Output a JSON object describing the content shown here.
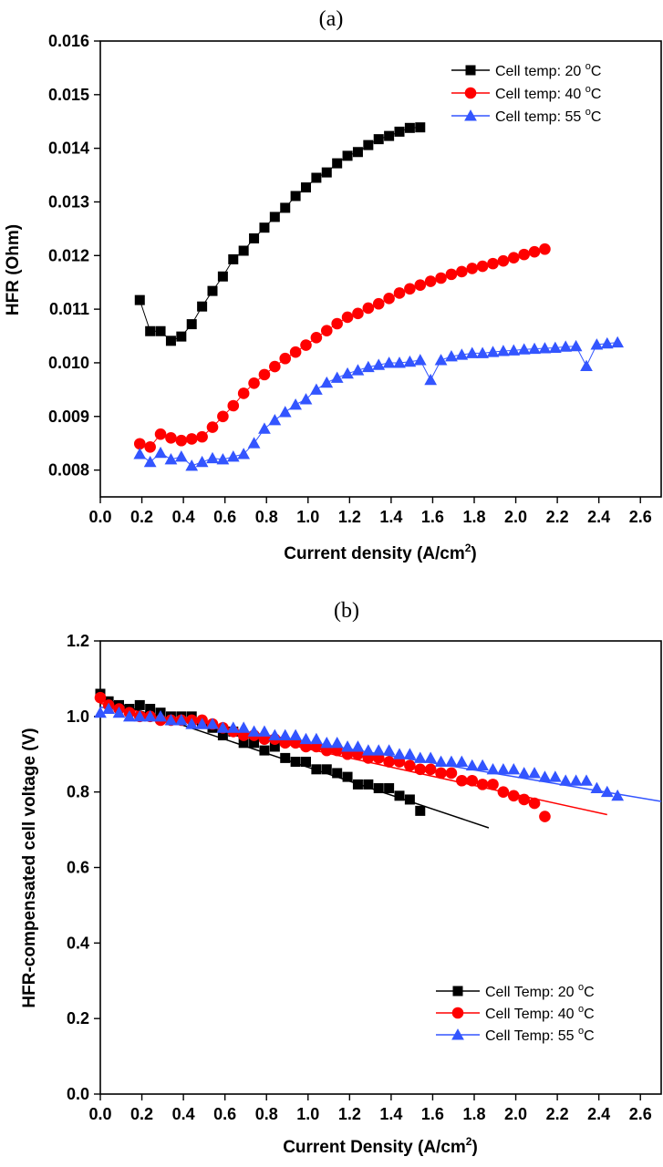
{
  "chart_data": [
    {
      "panel_label": "(a)",
      "type": "line",
      "xlabel": "Current density (A/cm",
      "xlabel_sup": "2",
      "xlabel_end": ")",
      "ylabel": "HFR (Ohm)",
      "xlim": [
        0.0,
        2.7
      ],
      "ylim": [
        0.0075,
        0.016
      ],
      "xticks": [
        "0.0",
        "0.2",
        "0.4",
        "0.6",
        "0.8",
        "1.0",
        "1.2",
        "1.4",
        "1.6",
        "1.8",
        "2.0",
        "2.2",
        "2.4",
        "2.6"
      ],
      "yticks": [
        "0.008",
        "0.009",
        "0.010",
        "0.011",
        "0.012",
        "0.013",
        "0.014",
        "0.015",
        "0.016"
      ],
      "legend_position": "top-right",
      "series": [
        {
          "name": "Cell temp: 20 °C",
          "legend_prefix": "Cell temp: 20 ",
          "legend_suffix": "C",
          "color": "#000000",
          "marker": "square",
          "x": [
            0.19,
            0.24,
            0.29,
            0.34,
            0.39,
            0.44,
            0.49,
            0.54,
            0.59,
            0.64,
            0.69,
            0.74,
            0.79,
            0.84,
            0.89,
            0.94,
            0.99,
            1.04,
            1.09,
            1.14,
            1.19,
            1.24,
            1.29,
            1.34,
            1.39,
            1.44,
            1.49,
            1.54
          ],
          "y": [
            0.01117,
            0.01059,
            0.01059,
            0.01041,
            0.01049,
            0.01072,
            0.01105,
            0.01134,
            0.01161,
            0.01193,
            0.01209,
            0.01232,
            0.01252,
            0.01272,
            0.01289,
            0.01311,
            0.01327,
            0.01345,
            0.01355,
            0.01372,
            0.01386,
            0.01393,
            0.01406,
            0.01417,
            0.01423,
            0.01431,
            0.01438,
            0.01439
          ]
        },
        {
          "name": "Cell temp: 40 °C",
          "legend_prefix": "Cell temp: 40 ",
          "legend_suffix": "C",
          "color": "#ff0000",
          "marker": "circle",
          "x": [
            0.19,
            0.24,
            0.29,
            0.34,
            0.39,
            0.44,
            0.49,
            0.54,
            0.59,
            0.64,
            0.69,
            0.74,
            0.79,
            0.84,
            0.89,
            0.94,
            0.99,
            1.04,
            1.09,
            1.14,
            1.19,
            1.24,
            1.29,
            1.34,
            1.39,
            1.44,
            1.49,
            1.54,
            1.59,
            1.64,
            1.69,
            1.74,
            1.79,
            1.84,
            1.89,
            1.94,
            1.99,
            2.04,
            2.09,
            2.14
          ],
          "y": [
            0.00849,
            0.00843,
            0.00867,
            0.0086,
            0.00855,
            0.00858,
            0.00862,
            0.0088,
            0.009,
            0.0092,
            0.00943,
            0.00962,
            0.00978,
            0.00993,
            0.01008,
            0.0102,
            0.01033,
            0.01047,
            0.0106,
            0.01073,
            0.01085,
            0.01092,
            0.01102,
            0.0111,
            0.0112,
            0.0113,
            0.01138,
            0.01145,
            0.01152,
            0.01158,
            0.01165,
            0.0117,
            0.01176,
            0.0118,
            0.01185,
            0.0119,
            0.01196,
            0.01202,
            0.01207,
            0.01212
          ]
        },
        {
          "name": "Cell temp: 55 °C",
          "legend_prefix": "Cell temp: 55 ",
          "legend_suffix": "C",
          "color": "#3355ff",
          "marker": "triangle",
          "x": [
            0.19,
            0.24,
            0.29,
            0.34,
            0.39,
            0.44,
            0.49,
            0.54,
            0.59,
            0.64,
            0.69,
            0.74,
            0.79,
            0.84,
            0.89,
            0.94,
            0.99,
            1.04,
            1.09,
            1.14,
            1.19,
            1.24,
            1.29,
            1.34,
            1.39,
            1.44,
            1.49,
            1.54,
            1.59,
            1.64,
            1.69,
            1.74,
            1.79,
            1.84,
            1.89,
            1.94,
            1.99,
            2.04,
            2.09,
            2.14,
            2.19,
            2.24,
            2.29,
            2.34,
            2.39,
            2.44,
            2.49
          ],
          "y": [
            0.0083,
            0.00815,
            0.00832,
            0.0082,
            0.00825,
            0.00808,
            0.00815,
            0.00822,
            0.0082,
            0.00825,
            0.0083,
            0.0085,
            0.00877,
            0.00893,
            0.00908,
            0.00922,
            0.00932,
            0.0095,
            0.00963,
            0.00972,
            0.0098,
            0.00986,
            0.00992,
            0.00996,
            0.01,
            0.01,
            0.01002,
            0.01005,
            0.00968,
            0.01005,
            0.01012,
            0.01015,
            0.01018,
            0.01018,
            0.0102,
            0.01022,
            0.01023,
            0.01025,
            0.01026,
            0.01027,
            0.01028,
            0.0103,
            0.01031,
            0.00994,
            0.01034,
            0.01036,
            0.01038
          ]
        }
      ]
    },
    {
      "panel_label": "(b)",
      "type": "scatter",
      "xlabel": "Current Density (A/cm",
      "xlabel_sup": "2",
      "xlabel_end": ")",
      "ylabel": "HFR-compensated cell voltage (V)",
      "xlim": [
        0.0,
        2.7
      ],
      "ylim": [
        0.0,
        1.2
      ],
      "xticks": [
        "0.0",
        "0.2",
        "0.4",
        "0.6",
        "0.8",
        "1.0",
        "1.2",
        "1.4",
        "1.6",
        "1.8",
        "2.0",
        "2.2",
        "2.4",
        "2.6"
      ],
      "yticks": [
        "0.0",
        "0.2",
        "0.4",
        "0.6",
        "0.8",
        "1.0",
        "1.2"
      ],
      "legend_position": "bottom-right",
      "series": [
        {
          "name": "Cell Temp: 20 °C",
          "legend_prefix": "Cell Temp: 20 ",
          "legend_suffix": "C",
          "color": "#000000",
          "marker": "square",
          "x": [
            0.0,
            0.04,
            0.09,
            0.14,
            0.19,
            0.24,
            0.29,
            0.34,
            0.39,
            0.44,
            0.49,
            0.54,
            0.59,
            0.64,
            0.69,
            0.74,
            0.79,
            0.84,
            0.89,
            0.94,
            0.99,
            1.04,
            1.09,
            1.14,
            1.19,
            1.24,
            1.29,
            1.34,
            1.39,
            1.44,
            1.49,
            1.54
          ],
          "y": [
            1.06,
            1.04,
            1.03,
            1.02,
            1.03,
            1.02,
            1.01,
            1.0,
            1.0,
            1.0,
            0.98,
            0.97,
            0.95,
            0.96,
            0.93,
            0.93,
            0.91,
            0.92,
            0.89,
            0.88,
            0.88,
            0.86,
            0.86,
            0.85,
            0.84,
            0.82,
            0.82,
            0.81,
            0.81,
            0.79,
            0.78,
            0.75
          ],
          "fit": {
            "x": [
              0.0,
              1.87
            ],
            "y": [
              1.05,
              0.705
            ]
          }
        },
        {
          "name": "Cell Temp: 40 °C",
          "legend_prefix": "Cell Temp: 40 ",
          "legend_suffix": "C",
          "color": "#ff0000",
          "marker": "circle",
          "x": [
            0.0,
            0.04,
            0.09,
            0.14,
            0.19,
            0.24,
            0.29,
            0.34,
            0.39,
            0.44,
            0.49,
            0.54,
            0.59,
            0.64,
            0.69,
            0.74,
            0.79,
            0.84,
            0.89,
            0.94,
            0.99,
            1.04,
            1.09,
            1.14,
            1.19,
            1.24,
            1.29,
            1.34,
            1.39,
            1.44,
            1.49,
            1.54,
            1.59,
            1.64,
            1.69,
            1.74,
            1.79,
            1.84,
            1.89,
            1.94,
            1.99,
            2.04,
            2.09,
            2.14
          ],
          "y": [
            1.05,
            1.03,
            1.02,
            1.01,
            1.0,
            1.0,
            0.99,
            0.99,
            0.99,
            0.99,
            0.99,
            0.98,
            0.97,
            0.96,
            0.95,
            0.95,
            0.94,
            0.94,
            0.93,
            0.93,
            0.92,
            0.92,
            0.91,
            0.91,
            0.9,
            0.9,
            0.89,
            0.89,
            0.88,
            0.88,
            0.87,
            0.86,
            0.86,
            0.85,
            0.85,
            0.83,
            0.83,
            0.82,
            0.82,
            0.8,
            0.79,
            0.78,
            0.77,
            0.735
          ],
          "fit": {
            "x": [
              0.0,
              2.44
            ],
            "y": [
              1.035,
              0.74
            ]
          }
        },
        {
          "name": "Cell Temp: 55 °C",
          "legend_prefix": "Cell Temp: 55 ",
          "legend_suffix": "C",
          "color": "#3355ff",
          "marker": "triangle",
          "x": [
            0.0,
            0.04,
            0.09,
            0.14,
            0.19,
            0.24,
            0.29,
            0.34,
            0.39,
            0.44,
            0.49,
            0.54,
            0.59,
            0.64,
            0.69,
            0.74,
            0.79,
            0.84,
            0.89,
            0.94,
            0.99,
            1.04,
            1.09,
            1.14,
            1.19,
            1.24,
            1.29,
            1.34,
            1.39,
            1.44,
            1.49,
            1.54,
            1.59,
            1.64,
            1.69,
            1.74,
            1.79,
            1.84,
            1.89,
            1.94,
            1.99,
            2.04,
            2.09,
            2.14,
            2.19,
            2.24,
            2.29,
            2.34,
            2.39,
            2.44,
            2.49
          ],
          "y": [
            1.01,
            1.02,
            1.01,
            1.0,
            1.0,
            1.0,
            1.0,
            0.99,
            0.99,
            0.98,
            0.98,
            0.98,
            0.97,
            0.97,
            0.97,
            0.96,
            0.96,
            0.95,
            0.95,
            0.95,
            0.94,
            0.94,
            0.93,
            0.93,
            0.92,
            0.92,
            0.91,
            0.91,
            0.91,
            0.9,
            0.9,
            0.89,
            0.89,
            0.88,
            0.88,
            0.88,
            0.87,
            0.87,
            0.86,
            0.86,
            0.86,
            0.85,
            0.85,
            0.84,
            0.84,
            0.83,
            0.83,
            0.83,
            0.81,
            0.8,
            0.79
          ],
          "fit": {
            "x": [
              0.0,
              2.7
            ],
            "y": [
              1.025,
              0.775
            ]
          }
        }
      ]
    }
  ]
}
